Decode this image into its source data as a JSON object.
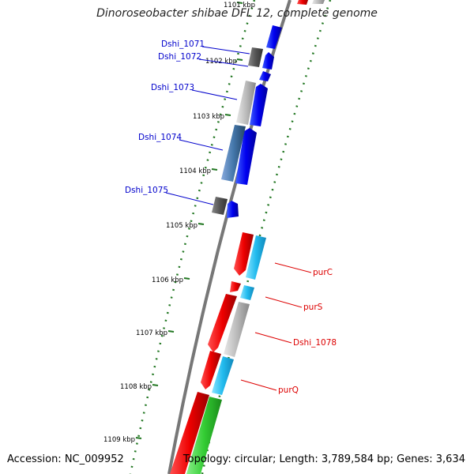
{
  "title": "Dinoroseobacter shibae DFL 12, complete genome",
  "accession": "Accession: NC_009952",
  "summary": "Topology: circular; Length: 3,789,584 bp; Genes: 3,634",
  "colors": {
    "forward_gene": "#0000ee",
    "reverse_gene": "#ee0000",
    "cyan_gene": "#22bbee",
    "green_gene": "#33cc33",
    "gray_gene": "#aaaaaa",
    "dark_gray_gene": "#555555",
    "steel_gene": "#4477aa",
    "backbone": "#777777",
    "tick": "#227722"
  },
  "ticks": [
    {
      "label": "1101 kbp"
    },
    {
      "label": "1102 kbp"
    },
    {
      "label": "1103 kbp"
    },
    {
      "label": "1104 kbp"
    },
    {
      "label": "1105 kbp"
    },
    {
      "label": "1106 kbp"
    },
    {
      "label": "1107 kbp"
    },
    {
      "label": "1108 kbp"
    },
    {
      "label": "1109 kbp"
    }
  ],
  "gene_labels_left": [
    {
      "name": "Dshi_1071"
    },
    {
      "name": "Dshi_1072"
    },
    {
      "name": "Dshi_1073"
    },
    {
      "name": "Dshi_1074"
    },
    {
      "name": "Dshi_1075"
    }
  ],
  "gene_labels_right": [
    {
      "name": "purC"
    },
    {
      "name": "purS"
    },
    {
      "name": "Dshi_1078"
    },
    {
      "name": "purQ"
    }
  ]
}
